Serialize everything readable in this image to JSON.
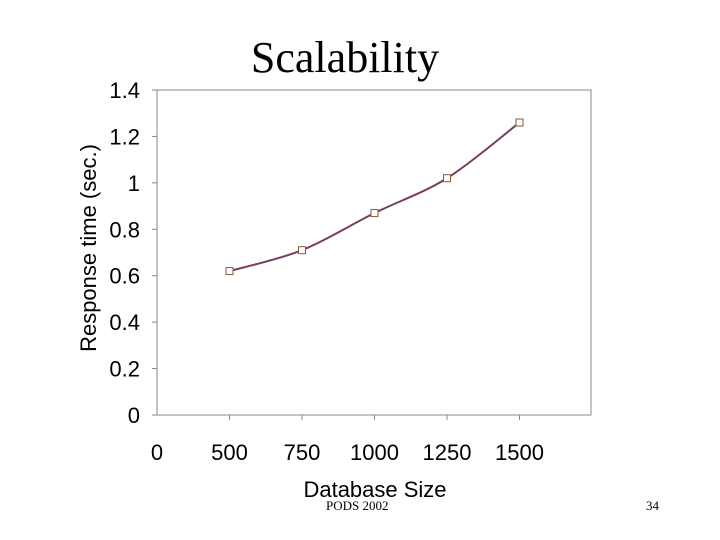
{
  "slide": {
    "title": "Scalability",
    "footer_text": "PODS 2002",
    "page_number": "34"
  },
  "chart_data": {
    "type": "line",
    "title": "",
    "xlabel": "Database Size",
    "ylabel": "Response time (sec.)",
    "x": [
      500,
      750,
      1000,
      1250,
      1500
    ],
    "x_tick_labels": [
      "0",
      "500",
      "750",
      "1000",
      "1250",
      "1500"
    ],
    "series": [
      {
        "values": [
          0.62,
          0.71,
          0.87,
          1.02,
          1.26
        ],
        "color": "#7a3d62",
        "marker": "square-open"
      }
    ],
    "ylim": [
      0,
      1.4
    ],
    "y_ticks": [
      "0",
      "0.2",
      "0.4",
      "0.6",
      "0.8",
      "1",
      "1.2",
      "1.4"
    ],
    "grid": false,
    "legend": "none"
  }
}
